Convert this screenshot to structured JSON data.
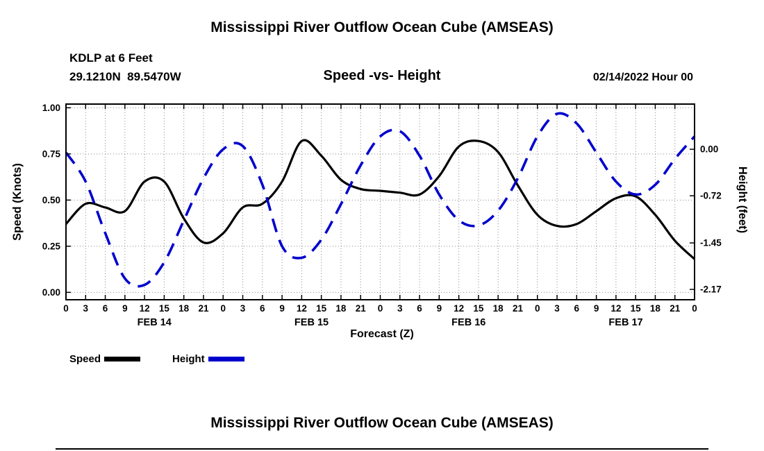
{
  "page": {
    "title": "Mississippi River Outflow Ocean Cube (AMSEAS)",
    "second_title": "Mississippi River Outflow Ocean Cube (AMSEAS)"
  },
  "header": {
    "station": "KDLP at 6 Feet",
    "coordinates": "29.1210N  89.5470W",
    "datetime": "02/14/2022 Hour 00"
  },
  "chart_data": {
    "type": "line",
    "title": "Speed -vs- Height",
    "xlabel": "Forecast (Z)",
    "ylabel": "Speed (Knots)",
    "y2label": "Height (feet)",
    "grid": "dotted",
    "x_tick_step": 3,
    "x_tick_label_mod": 24,
    "x": [
      0,
      3,
      6,
      9,
      12,
      15,
      18,
      21,
      24,
      27,
      30,
      33,
      36,
      39,
      42,
      45,
      48,
      51,
      54,
      57,
      60,
      63,
      66,
      69,
      72,
      75,
      78,
      81,
      84,
      87,
      90,
      93,
      96
    ],
    "x_day_labels": [
      {
        "label": "FEB 14",
        "t": 13.5
      },
      {
        "label": "FEB 15",
        "t": 37.5
      },
      {
        "label": "FEB 16",
        "t": 61.5
      },
      {
        "label": "FEB 17",
        "t": 85.5
      }
    ],
    "left_axis": {
      "min": -0.04,
      "max": 1.02,
      "ticks": [
        1.0,
        0.75,
        0.5,
        0.25,
        0.0
      ]
    },
    "right_axis": {
      "min": -2.33,
      "max": 0.7,
      "ticks": [
        0.0,
        -0.72,
        -1.45,
        -2.17
      ]
    },
    "series": [
      {
        "name": "Speed",
        "axis": "left",
        "color": "#000000",
        "style": "solid",
        "width": 3.2,
        "values": [
          0.37,
          0.48,
          0.46,
          0.44,
          0.6,
          0.6,
          0.4,
          0.27,
          0.32,
          0.46,
          0.48,
          0.6,
          0.82,
          0.74,
          0.61,
          0.56,
          0.55,
          0.54,
          0.53,
          0.63,
          0.79,
          0.82,
          0.76,
          0.58,
          0.42,
          0.36,
          0.37,
          0.44,
          0.51,
          0.52,
          0.42,
          0.28,
          0.18
        ]
      },
      {
        "name": "Height",
        "axis": "right",
        "color": "#0000cd",
        "style": "dashed",
        "width": 3.6,
        "values": [
          -0.05,
          -0.5,
          -1.3,
          -2.0,
          -2.1,
          -1.75,
          -1.1,
          -0.45,
          0.0,
          0.05,
          -0.55,
          -1.5,
          -1.68,
          -1.4,
          -0.85,
          -0.25,
          0.2,
          0.28,
          -0.1,
          -0.7,
          -1.1,
          -1.18,
          -0.95,
          -0.45,
          0.2,
          0.55,
          0.4,
          -0.05,
          -0.5,
          -0.7,
          -0.55,
          -0.15,
          0.2
        ]
      }
    ]
  }
}
